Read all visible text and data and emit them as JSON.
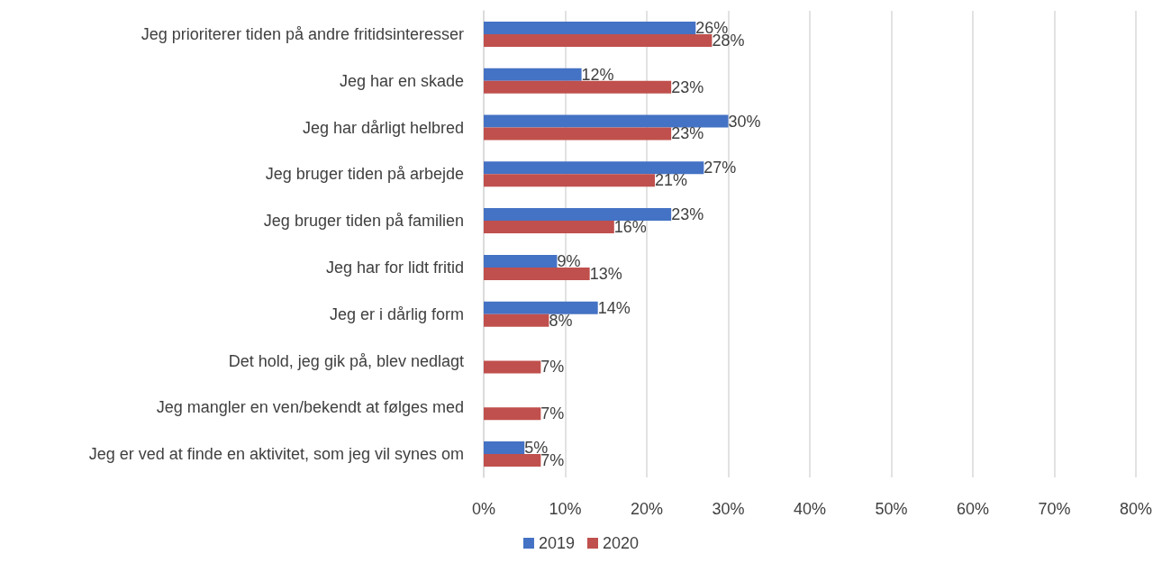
{
  "chart_data": {
    "type": "bar",
    "orientation": "horizontal",
    "categories": [
      "Jeg prioriterer tiden på andre fritidsinteresser",
      "Jeg har en skade",
      "Jeg har dårligt helbred",
      "Jeg bruger tiden på arbejde",
      "Jeg bruger tiden på familien",
      "Jeg har for lidt fritid",
      "Jeg er i dårlig form",
      "Det hold, jeg gik på, blev nedlagt",
      "Jeg mangler en ven/bekendt at følges med",
      "Jeg er ved at finde en aktivitet, som jeg vil synes om"
    ],
    "series": [
      {
        "name": "2019",
        "color": "#4472c4",
        "values": [
          26,
          12,
          30,
          27,
          23,
          9,
          14,
          null,
          null,
          5
        ],
        "value_labels": [
          "26%",
          "12%",
          "30%",
          "27%",
          "23%",
          "9%",
          "14%",
          null,
          null,
          "5%"
        ]
      },
      {
        "name": "2020",
        "color": "#c0504d",
        "values": [
          28,
          23,
          23,
          21,
          16,
          13,
          8,
          7,
          7,
          7
        ],
        "value_labels": [
          "28%",
          "23%",
          "23%",
          "21%",
          "16%",
          "13%",
          "8%",
          "7%",
          "7%",
          "7%"
        ]
      }
    ],
    "xlim": [
      0,
      80
    ],
    "xticks": [
      {
        "value": 0,
        "label": "0%"
      },
      {
        "value": 10,
        "label": "10%"
      },
      {
        "value": 20,
        "label": "20%"
      },
      {
        "value": 30,
        "label": "30%"
      },
      {
        "value": 40,
        "label": "40%"
      },
      {
        "value": 50,
        "label": "50%"
      },
      {
        "value": 60,
        "label": "60%"
      },
      {
        "value": 70,
        "label": "70%"
      },
      {
        "value": 80,
        "label": "80%"
      }
    ],
    "grid": "x",
    "legend": "bottom"
  }
}
